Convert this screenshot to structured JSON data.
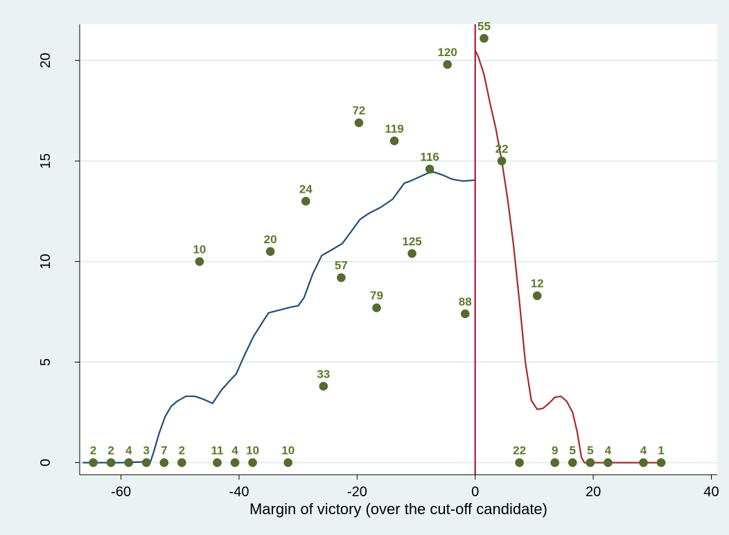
{
  "chart_data": {
    "type": "scatter",
    "title": "",
    "xlabel": "Margin of victory (over the cut-off candidate)",
    "ylabel": "",
    "xlim": [
      -67,
      41
    ],
    "ylim": [
      -0.6,
      21.8
    ],
    "x_ticks": [
      "-60",
      "-40",
      "-20",
      "0",
      "20",
      "40"
    ],
    "x_tick_values": [
      -60,
      -40,
      -20,
      0,
      20,
      40
    ],
    "y_ticks": [
      "0",
      "5",
      "10",
      "15",
      "20"
    ],
    "y_tick_values": [
      0,
      5,
      10,
      15,
      20
    ],
    "grid": "horizontal",
    "cutoff_x": 0,
    "colors": {
      "points": "#556b2f",
      "point_labels": "#5a7a2a",
      "left_fit": "#1f4e79",
      "right_fit": "#a52a2a",
      "cutoff_line": "#b0173e",
      "plot_bg": "#ffffff",
      "outer_bg": "#eaf2f3",
      "grid": "#dce8ea"
    },
    "points": [
      {
        "x": -64.7,
        "y": 0,
        "label": "2"
      },
      {
        "x": -61.7,
        "y": 0,
        "label": "2"
      },
      {
        "x": -58.7,
        "y": 0,
        "label": "4"
      },
      {
        "x": -55.7,
        "y": 0,
        "label": "3"
      },
      {
        "x": -52.7,
        "y": 0,
        "label": "7"
      },
      {
        "x": -49.7,
        "y": 0,
        "label": "2"
      },
      {
        "x": -46.7,
        "y": 10.0,
        "label": "10"
      },
      {
        "x": -43.7,
        "y": 0,
        "label": "11"
      },
      {
        "x": -40.7,
        "y": 0,
        "label": "4"
      },
      {
        "x": -37.7,
        "y": 0,
        "label": "10"
      },
      {
        "x": -34.7,
        "y": 10.5,
        "label": "20"
      },
      {
        "x": -31.7,
        "y": 0,
        "label": "10"
      },
      {
        "x": -28.7,
        "y": 13.0,
        "label": "24"
      },
      {
        "x": -25.7,
        "y": 3.8,
        "label": "33"
      },
      {
        "x": -22.7,
        "y": 9.2,
        "label": "57"
      },
      {
        "x": -19.7,
        "y": 16.9,
        "label": "72"
      },
      {
        "x": -16.7,
        "y": 7.7,
        "label": "79"
      },
      {
        "x": -13.7,
        "y": 16.0,
        "label": "119"
      },
      {
        "x": -10.7,
        "y": 10.4,
        "label": "125"
      },
      {
        "x": -7.7,
        "y": 14.6,
        "label": "116"
      },
      {
        "x": -4.7,
        "y": 19.8,
        "label": "120"
      },
      {
        "x": -1.7,
        "y": 7.4,
        "label": "88"
      },
      {
        "x": 1.5,
        "y": 21.1,
        "label": "55"
      },
      {
        "x": 4.5,
        "y": 15.0,
        "label": "22"
      },
      {
        "x": 7.5,
        "y": 0,
        "label": "22"
      },
      {
        "x": 10.5,
        "y": 8.3,
        "label": "12"
      },
      {
        "x": 13.5,
        "y": 0,
        "label": "9"
      },
      {
        "x": 16.5,
        "y": 0,
        "label": "5"
      },
      {
        "x": 19.5,
        "y": 0,
        "label": "5"
      },
      {
        "x": 22.5,
        "y": 0,
        "label": "4"
      },
      {
        "x": 28.5,
        "y": 0,
        "label": "4"
      },
      {
        "x": 31.5,
        "y": 0,
        "label": "1"
      }
    ],
    "series": [
      {
        "values": [
          [
            -66.5,
            0
          ],
          [
            -60,
            0
          ],
          [
            -55,
            0.05
          ],
          [
            -54.5,
            0.5
          ],
          [
            -53.5,
            1.5
          ],
          [
            -52.5,
            2.3
          ],
          [
            -51.5,
            2.8
          ],
          [
            -50.5,
            3.05
          ],
          [
            -49,
            3.3
          ],
          [
            -47.5,
            3.3
          ],
          [
            -46,
            3.15
          ],
          [
            -44.5,
            2.95
          ],
          [
            -43,
            3.6
          ],
          [
            -41.5,
            4.1
          ],
          [
            -40.5,
            4.4
          ],
          [
            -39,
            5.4
          ],
          [
            -37.5,
            6.3
          ],
          [
            -36,
            7.0
          ],
          [
            -35,
            7.45
          ],
          [
            -33,
            7.6
          ],
          [
            -31,
            7.75
          ],
          [
            -30,
            7.8
          ],
          [
            -29,
            8.2
          ],
          [
            -27.5,
            9.4
          ],
          [
            -26,
            10.3
          ],
          [
            -24.5,
            10.55
          ],
          [
            -22.5,
            10.9
          ],
          [
            -21,
            11.5
          ],
          [
            -19.5,
            12.1
          ],
          [
            -18,
            12.4
          ],
          [
            -16,
            12.7
          ],
          [
            -14,
            13.1
          ],
          [
            -13,
            13.5
          ],
          [
            -12,
            13.9
          ],
          [
            -11,
            14.0
          ],
          [
            -9.5,
            14.2
          ],
          [
            -8,
            14.4
          ],
          [
            -7,
            14.45
          ],
          [
            -5.5,
            14.3
          ],
          [
            -4,
            14.1
          ],
          [
            -3,
            14.05
          ],
          [
            -2,
            14.0
          ],
          [
            0,
            14.05
          ]
        ]
      },
      {
        "values": [
          [
            0,
            20.5
          ],
          [
            0.5,
            20.2
          ],
          [
            1.5,
            19.3
          ],
          [
            2.5,
            17.9
          ],
          [
            3.5,
            16.6
          ],
          [
            4.5,
            15.0
          ],
          [
            5.5,
            13.1
          ],
          [
            6.5,
            10.8
          ],
          [
            7.5,
            8.0
          ],
          [
            8.5,
            5.0
          ],
          [
            9.5,
            3.1
          ],
          [
            10.5,
            2.65
          ],
          [
            11.5,
            2.7
          ],
          [
            12.5,
            2.95
          ],
          [
            13.5,
            3.25
          ],
          [
            14.5,
            3.3
          ],
          [
            15.5,
            3.05
          ],
          [
            16.5,
            2.5
          ],
          [
            17.3,
            1.5
          ],
          [
            18,
            0.25
          ],
          [
            18.5,
            0
          ],
          [
            20,
            0
          ],
          [
            31.5,
            0
          ]
        ]
      }
    ]
  }
}
